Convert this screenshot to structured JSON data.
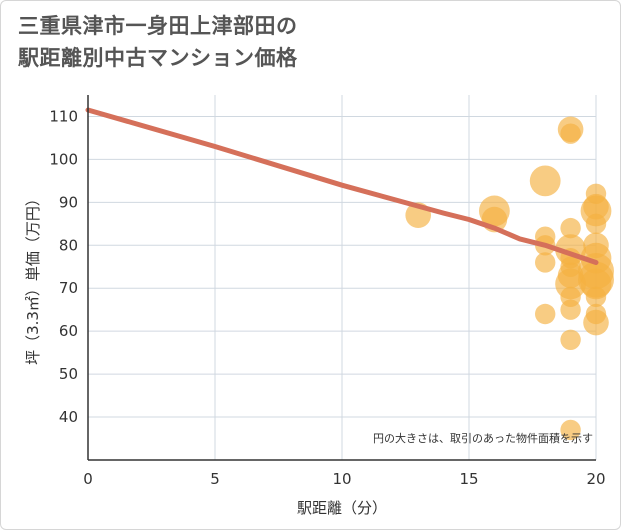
{
  "chart_data": {
    "type": "scatter",
    "title": "三重県津市一身田上津部田の駅距離別中古マンション価格",
    "title_lines": [
      "三重県津市一身田上津部田の",
      "駅距離別中古マンション価格"
    ],
    "xlabel": "駅距離（分）",
    "ylabel": "坪（3.3㎡）単価（万円）",
    "xlim": [
      0,
      20
    ],
    "ylim": [
      30,
      115
    ],
    "xticks": [
      0,
      5,
      10,
      15,
      20
    ],
    "yticks": [
      40,
      50,
      60,
      70,
      80,
      90,
      100,
      110
    ],
    "grid": true,
    "annotation": "円の大きさは、取引のあった物件面積を示す",
    "colors": {
      "points": "#f5b041",
      "trend": "#d5705a",
      "grid": "#d0d8e0",
      "axis": "#333333"
    },
    "trend_line": {
      "name": "trend",
      "x": [
        0,
        5,
        10,
        14,
        15,
        16,
        17,
        18,
        19,
        20
      ],
      "y": [
        111.5,
        103,
        94,
        87.5,
        86,
        84,
        81.5,
        80,
        78,
        76
      ]
    },
    "points": [
      {
        "x": 13,
        "y": 87,
        "size": 3
      },
      {
        "x": 16,
        "y": 88,
        "size": 4
      },
      {
        "x": 16,
        "y": 86,
        "size": 3
      },
      {
        "x": 18,
        "y": 95,
        "size": 4
      },
      {
        "x": 18,
        "y": 82,
        "size": 2
      },
      {
        "x": 18,
        "y": 80,
        "size": 2
      },
      {
        "x": 18,
        "y": 76,
        "size": 2
      },
      {
        "x": 18,
        "y": 64,
        "size": 2
      },
      {
        "x": 19,
        "y": 107,
        "size": 3
      },
      {
        "x": 19,
        "y": 106,
        "size": 2
      },
      {
        "x": 19,
        "y": 84,
        "size": 2
      },
      {
        "x": 19,
        "y": 79,
        "size": 4
      },
      {
        "x": 19,
        "y": 77,
        "size": 2
      },
      {
        "x": 19,
        "y": 75,
        "size": 2
      },
      {
        "x": 19,
        "y": 73,
        "size": 3
      },
      {
        "x": 19,
        "y": 71,
        "size": 4
      },
      {
        "x": 19,
        "y": 68,
        "size": 2
      },
      {
        "x": 19,
        "y": 65,
        "size": 2
      },
      {
        "x": 19,
        "y": 58,
        "size": 2
      },
      {
        "x": 19,
        "y": 37,
        "size": 2
      },
      {
        "x": 20,
        "y": 92,
        "size": 2
      },
      {
        "x": 20,
        "y": 89,
        "size": 3
      },
      {
        "x": 20,
        "y": 88,
        "size": 4
      },
      {
        "x": 20,
        "y": 85,
        "size": 2
      },
      {
        "x": 20,
        "y": 80,
        "size": 3
      },
      {
        "x": 20,
        "y": 77,
        "size": 4
      },
      {
        "x": 20,
        "y": 74,
        "size": 5
      },
      {
        "x": 20,
        "y": 72,
        "size": 5
      },
      {
        "x": 20,
        "y": 71,
        "size": 4
      },
      {
        "x": 20,
        "y": 68,
        "size": 2
      },
      {
        "x": 20,
        "y": 64,
        "size": 2
      },
      {
        "x": 20,
        "y": 62,
        "size": 3
      }
    ]
  }
}
